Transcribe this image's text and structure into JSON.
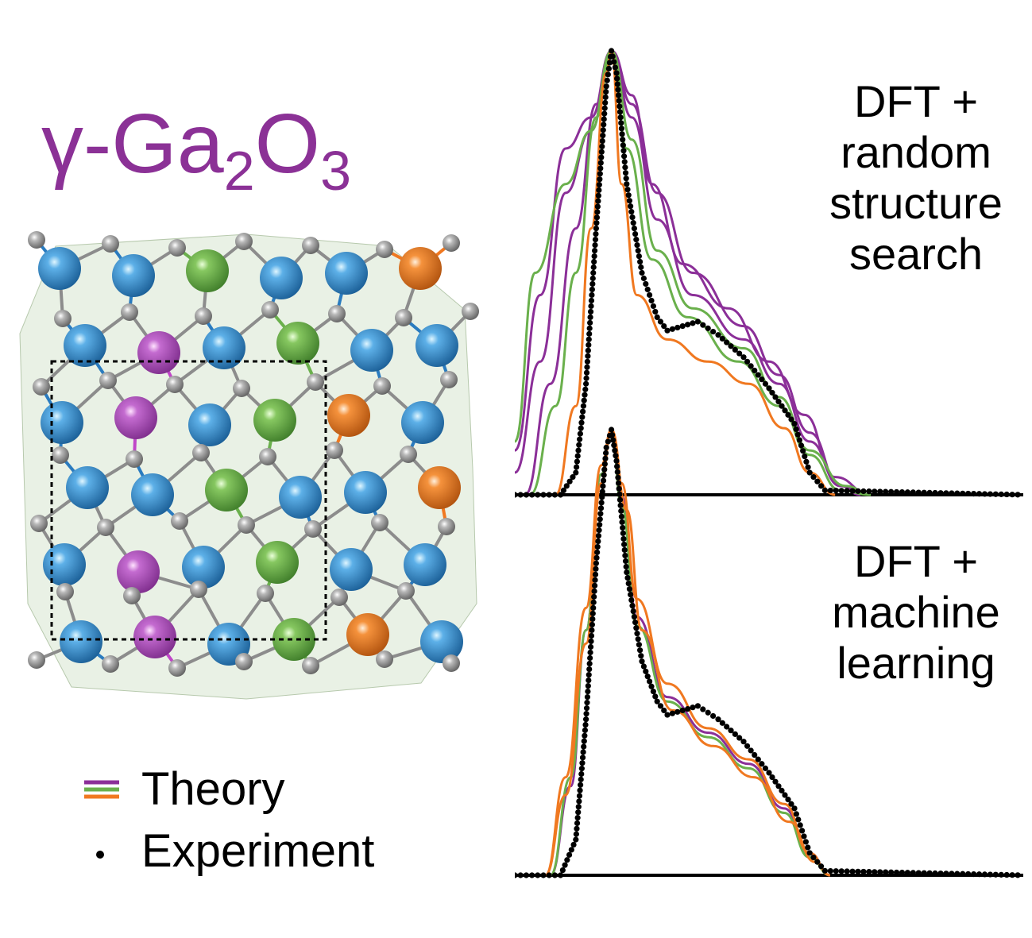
{
  "title": {
    "main": "γ-Ga",
    "sub1": "2",
    "mid": "O",
    "sub2": "3"
  },
  "colors": {
    "purple": "#8b2f98",
    "green": "#6ab04c",
    "orange": "#f07820",
    "blue": "#2a7bbf",
    "gray": "#9a9a9a",
    "black": "#000000"
  },
  "structure": {
    "description_icon": "crystal-structure-illustration",
    "atom_types": [
      "blue",
      "green",
      "orange",
      "magenta",
      "gray"
    ]
  },
  "panels": {
    "top": {
      "lines": [
        "DFT +",
        "random",
        "structure",
        "search"
      ]
    },
    "bottom": {
      "lines": [
        "DFT +",
        "machine",
        "learning"
      ]
    }
  },
  "legend": {
    "theory_label": "Theory",
    "experiment_label": "Experiment",
    "theory_colors": [
      "#8b2f98",
      "#6ab04c",
      "#f07820"
    ]
  },
  "chart_data": [
    {
      "type": "line",
      "panel": "top",
      "x_range": [
        0,
        1
      ],
      "y_range": [
        0,
        1
      ],
      "axes_visible": false,
      "series": [
        {
          "color": "#000000",
          "style": "dots",
          "points": [
            [
              0,
              0
            ],
            [
              0.09,
              0
            ],
            [
              0.12,
              0.05
            ],
            [
              0.14,
              0.25
            ],
            [
              0.16,
              0.6
            ],
            [
              0.18,
              0.92
            ],
            [
              0.19,
              1.0
            ],
            [
              0.2,
              0.95
            ],
            [
              0.22,
              0.7
            ],
            [
              0.25,
              0.5
            ],
            [
              0.28,
              0.4
            ],
            [
              0.3,
              0.37
            ],
            [
              0.33,
              0.38
            ],
            [
              0.36,
              0.39
            ],
            [
              0.4,
              0.36
            ],
            [
              0.45,
              0.31
            ],
            [
              0.5,
              0.24
            ],
            [
              0.55,
              0.16
            ],
            [
              0.58,
              0.05
            ],
            [
              0.61,
              0.01
            ],
            [
              1,
              0
            ]
          ]
        },
        {
          "color": "#8b2f98",
          "style": "line",
          "points": [
            [
              0,
              0.1
            ],
            [
              0.05,
              0.45
            ],
            [
              0.1,
              0.78
            ],
            [
              0.15,
              0.85
            ],
            [
              0.19,
              1.0
            ],
            [
              0.23,
              0.9
            ],
            [
              0.27,
              0.7
            ],
            [
              0.33,
              0.52
            ],
            [
              0.42,
              0.42
            ],
            [
              0.5,
              0.3
            ],
            [
              0.57,
              0.18
            ],
            [
              0.63,
              0.04
            ],
            [
              0.7,
              0
            ]
          ]
        },
        {
          "color": "#8b2f98",
          "style": "line",
          "points": [
            [
              0,
              0.05
            ],
            [
              0.05,
              0.3
            ],
            [
              0.1,
              0.68
            ],
            [
              0.15,
              0.82
            ],
            [
              0.19,
              1.0
            ],
            [
              0.23,
              0.88
            ],
            [
              0.28,
              0.68
            ],
            [
              0.35,
              0.5
            ],
            [
              0.45,
              0.38
            ],
            [
              0.52,
              0.27
            ],
            [
              0.58,
              0.14
            ],
            [
              0.64,
              0.02
            ],
            [
              0.7,
              0
            ]
          ]
        },
        {
          "color": "#8b2f98",
          "style": "line",
          "points": [
            [
              0.02,
              0
            ],
            [
              0.07,
              0.25
            ],
            [
              0.12,
              0.6
            ],
            [
              0.16,
              0.88
            ],
            [
              0.19,
              1.0
            ],
            [
              0.23,
              0.85
            ],
            [
              0.28,
              0.62
            ],
            [
              0.35,
              0.45
            ],
            [
              0.45,
              0.35
            ],
            [
              0.52,
              0.25
            ],
            [
              0.58,
              0.12
            ],
            [
              0.64,
              0.02
            ],
            [
              0.68,
              0
            ]
          ]
        },
        {
          "color": "#6ab04c",
          "style": "line",
          "points": [
            [
              0,
              0.12
            ],
            [
              0.04,
              0.5
            ],
            [
              0.1,
              0.7
            ],
            [
              0.15,
              0.82
            ],
            [
              0.19,
              1.0
            ],
            [
              0.23,
              0.8
            ],
            [
              0.28,
              0.55
            ],
            [
              0.35,
              0.42
            ],
            [
              0.45,
              0.33
            ],
            [
              0.52,
              0.22
            ],
            [
              0.58,
              0.1
            ],
            [
              0.65,
              0.02
            ],
            [
              0.7,
              0
            ]
          ]
        },
        {
          "color": "#6ab04c",
          "style": "line",
          "points": [
            [
              0.03,
              0
            ],
            [
              0.08,
              0.2
            ],
            [
              0.12,
              0.5
            ],
            [
              0.16,
              0.85
            ],
            [
              0.19,
              1.0
            ],
            [
              0.22,
              0.78
            ],
            [
              0.27,
              0.53
            ],
            [
              0.34,
              0.4
            ],
            [
              0.44,
              0.3
            ],
            [
              0.52,
              0.2
            ],
            [
              0.58,
              0.09
            ],
            [
              0.64,
              0.01
            ],
            [
              0.7,
              0
            ]
          ]
        },
        {
          "color": "#f07820",
          "style": "line",
          "points": [
            [
              0.08,
              0
            ],
            [
              0.12,
              0.2
            ],
            [
              0.15,
              0.6
            ],
            [
              0.18,
              0.95
            ],
            [
              0.19,
              1.0
            ],
            [
              0.21,
              0.7
            ],
            [
              0.24,
              0.45
            ],
            [
              0.3,
              0.35
            ],
            [
              0.38,
              0.3
            ],
            [
              0.46,
              0.25
            ],
            [
              0.53,
              0.15
            ],
            [
              0.58,
              0.05
            ],
            [
              0.63,
              0
            ]
          ]
        }
      ]
    },
    {
      "type": "line",
      "panel": "bottom",
      "x_range": [
        0,
        1
      ],
      "y_range": [
        0,
        1
      ],
      "axes_visible": false,
      "series": [
        {
          "color": "#000000",
          "style": "dots",
          "points": [
            [
              0,
              0
            ],
            [
              0.09,
              0
            ],
            [
              0.12,
              0.08
            ],
            [
              0.14,
              0.35
            ],
            [
              0.16,
              0.7
            ],
            [
              0.18,
              0.96
            ],
            [
              0.19,
              1.0
            ],
            [
              0.2,
              0.93
            ],
            [
              0.22,
              0.68
            ],
            [
              0.25,
              0.48
            ],
            [
              0.28,
              0.39
            ],
            [
              0.3,
              0.36
            ],
            [
              0.33,
              0.37
            ],
            [
              0.36,
              0.38
            ],
            [
              0.4,
              0.35
            ],
            [
              0.45,
              0.3
            ],
            [
              0.5,
              0.23
            ],
            [
              0.55,
              0.15
            ],
            [
              0.58,
              0.05
            ],
            [
              0.61,
              0.01
            ],
            [
              1,
              0
            ]
          ]
        },
        {
          "color": "#8b2f98",
          "style": "line",
          "points": [
            [
              0.07,
              0
            ],
            [
              0.11,
              0.2
            ],
            [
              0.14,
              0.55
            ],
            [
              0.17,
              0.9
            ],
            [
              0.19,
              1.0
            ],
            [
              0.21,
              0.85
            ],
            [
              0.24,
              0.58
            ],
            [
              0.3,
              0.4
            ],
            [
              0.38,
              0.32
            ],
            [
              0.46,
              0.25
            ],
            [
              0.53,
              0.15
            ],
            [
              0.58,
              0.05
            ],
            [
              0.62,
              0
            ]
          ]
        },
        {
          "color": "#6ab04c",
          "style": "line",
          "points": [
            [
              0.07,
              0
            ],
            [
              0.11,
              0.22
            ],
            [
              0.14,
              0.55
            ],
            [
              0.17,
              0.9
            ],
            [
              0.19,
              1.0
            ],
            [
              0.21,
              0.83
            ],
            [
              0.24,
              0.56
            ],
            [
              0.3,
              0.39
            ],
            [
              0.38,
              0.31
            ],
            [
              0.46,
              0.24
            ],
            [
              0.53,
              0.14
            ],
            [
              0.58,
              0.04
            ],
            [
              0.62,
              0
            ]
          ]
        },
        {
          "color": "#f07820",
          "style": "line",
          "points": [
            [
              0.06,
              0
            ],
            [
              0.1,
              0.22
            ],
            [
              0.14,
              0.6
            ],
            [
              0.17,
              0.92
            ],
            [
              0.19,
              1.0
            ],
            [
              0.21,
              0.88
            ],
            [
              0.24,
              0.62
            ],
            [
              0.3,
              0.43
            ],
            [
              0.38,
              0.33
            ],
            [
              0.46,
              0.26
            ],
            [
              0.53,
              0.16
            ],
            [
              0.58,
              0.05
            ],
            [
              0.62,
              0
            ]
          ]
        },
        {
          "color": "#f07820",
          "style": "line",
          "points": [
            [
              0.06,
              0
            ],
            [
              0.1,
              0.18
            ],
            [
              0.14,
              0.52
            ],
            [
              0.17,
              0.88
            ],
            [
              0.19,
              1.0
            ],
            [
              0.22,
              0.82
            ],
            [
              0.25,
              0.55
            ],
            [
              0.31,
              0.37
            ],
            [
              0.39,
              0.29
            ],
            [
              0.47,
              0.22
            ],
            [
              0.54,
              0.12
            ],
            [
              0.59,
              0.03
            ],
            [
              0.62,
              0
            ]
          ]
        }
      ]
    }
  ]
}
